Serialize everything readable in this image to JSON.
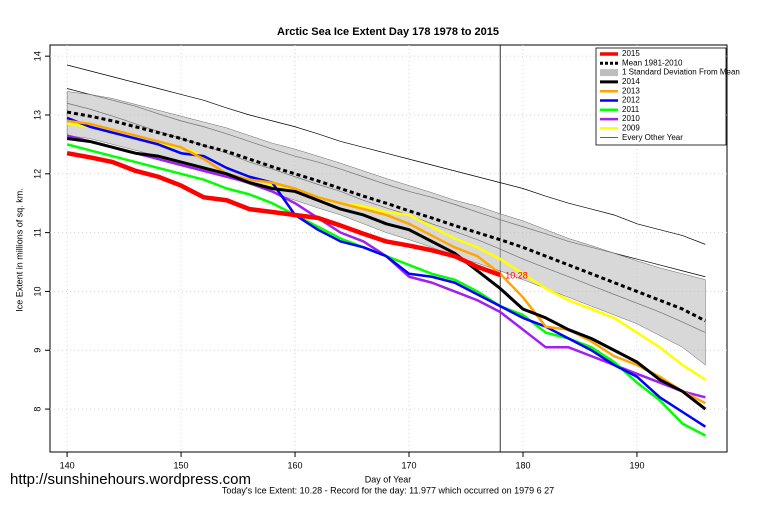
{
  "chart_data": {
    "type": "line",
    "title": "Arctic Sea Ice Extent Day 178 1978 to 2015",
    "x_label": "Day of Year",
    "y_label": "Ice Extent in millions of sq. km.",
    "footer": "Today's Ice Extent: 10.28  - Record for the day: 11.977 which occurred on 1979 6 27",
    "watermark": "http://sunshinehours.wordpress.com",
    "x": [
      140,
      142,
      144,
      146,
      148,
      150,
      152,
      154,
      156,
      158,
      160,
      162,
      164,
      166,
      168,
      170,
      172,
      174,
      176,
      178,
      180,
      182,
      184,
      186,
      188,
      190,
      192,
      194,
      196
    ],
    "xlim": [
      138.5,
      197.9
    ],
    "ylim": [
      7.27,
      14.19
    ],
    "xticks": [
      140,
      150,
      160,
      170,
      180,
      190
    ],
    "yticks": [
      8,
      9,
      10,
      11,
      12,
      13,
      14
    ],
    "grid": true,
    "vline": 178,
    "legend": "top-right",
    "series": [
      {
        "name": "2015",
        "color": "#ff0000",
        "width": 4.5,
        "values": [
          12.35,
          12.28,
          12.2,
          12.05,
          11.95,
          11.8,
          11.6,
          11.55,
          11.4,
          11.35,
          11.3,
          11.25,
          11.12,
          10.98,
          10.85,
          10.78,
          10.7,
          10.6,
          10.42,
          10.28,
          null,
          null,
          null,
          null,
          null,
          null,
          null,
          null,
          null
        ]
      },
      {
        "name": "Mean 1981-2010",
        "color": "#000000",
        "width": 3,
        "dash": true,
        "values": [
          13.05,
          12.98,
          12.9,
          12.8,
          12.7,
          12.6,
          12.48,
          12.38,
          12.25,
          12.12,
          12.0,
          11.88,
          11.75,
          11.62,
          11.5,
          11.37,
          11.25,
          11.12,
          11.0,
          10.88,
          10.75,
          10.6,
          10.45,
          10.3,
          10.15,
          10.0,
          9.85,
          9.7,
          9.5
        ]
      },
      {
        "name": "1 Standard Deviation From Mean",
        "color": "#bebebe",
        "band": true,
        "upper": [
          13.4,
          13.35,
          13.28,
          13.18,
          13.08,
          12.98,
          12.88,
          12.78,
          12.65,
          12.52,
          12.42,
          12.3,
          12.18,
          12.05,
          11.92,
          11.8,
          11.68,
          11.55,
          11.45,
          11.32,
          11.2,
          11.05,
          10.9,
          10.78,
          10.65,
          10.52,
          10.4,
          10.3,
          10.2
        ],
        "lower": [
          12.65,
          12.6,
          12.5,
          12.4,
          12.3,
          12.2,
          12.08,
          11.95,
          11.82,
          11.68,
          11.55,
          11.42,
          11.3,
          11.15,
          11.0,
          10.88,
          10.75,
          10.6,
          10.48,
          10.35,
          10.2,
          10.05,
          9.9,
          9.75,
          9.6,
          9.45,
          9.25,
          9.05,
          8.75
        ]
      },
      {
        "name": "2014",
        "color": "#000000",
        "width": 3,
        "values": [
          12.6,
          12.55,
          12.45,
          12.35,
          12.3,
          12.2,
          12.1,
          12.0,
          11.85,
          11.75,
          11.7,
          11.55,
          11.4,
          11.3,
          11.15,
          11.05,
          10.85,
          10.65,
          10.35,
          10.05,
          9.7,
          9.55,
          9.35,
          9.2,
          9.0,
          8.8,
          8.5,
          8.3,
          8.0
        ]
      },
      {
        "name": "2013",
        "color": "#ffa500",
        "width": 2.5,
        "values": [
          12.9,
          12.85,
          12.75,
          12.65,
          12.55,
          12.45,
          12.25,
          12.0,
          11.9,
          11.85,
          11.75,
          11.6,
          11.5,
          11.4,
          11.3,
          11.15,
          10.95,
          10.75,
          10.6,
          10.3,
          9.9,
          9.4,
          9.35,
          9.15,
          8.9,
          8.75,
          8.55,
          8.3,
          8.1
        ]
      },
      {
        "name": "2012",
        "color": "#0000ff",
        "width": 2.5,
        "values": [
          12.95,
          12.8,
          12.7,
          12.6,
          12.5,
          12.35,
          12.3,
          12.1,
          11.95,
          11.85,
          11.3,
          11.05,
          10.85,
          10.75,
          10.6,
          10.3,
          10.25,
          10.15,
          9.95,
          9.75,
          9.55,
          9.4,
          9.2,
          9.0,
          8.75,
          8.55,
          8.2,
          7.95,
          7.7
        ]
      },
      {
        "name": "2011",
        "color": "#00ff00",
        "width": 2.5,
        "values": [
          12.5,
          12.4,
          12.3,
          12.2,
          12.1,
          12.0,
          11.9,
          11.75,
          11.65,
          11.5,
          11.3,
          11.1,
          10.9,
          10.75,
          10.6,
          10.45,
          10.3,
          10.2,
          10.0,
          9.75,
          9.6,
          9.3,
          9.2,
          9.05,
          8.8,
          8.45,
          8.15,
          7.75,
          7.55
        ]
      },
      {
        "name": "2010",
        "color": "#a020f0",
        "width": 2.5,
        "values": [
          12.65,
          12.55,
          12.45,
          12.35,
          12.25,
          12.15,
          12.05,
          11.95,
          11.85,
          11.7,
          11.5,
          11.25,
          11.0,
          10.85,
          10.6,
          10.25,
          10.15,
          10.0,
          9.85,
          9.65,
          9.35,
          9.05,
          9.05,
          8.9,
          8.75,
          8.6,
          8.45,
          8.3,
          8.2
        ]
      },
      {
        "name": "2009",
        "color": "#ffff00",
        "width": 2.5,
        "values": [
          12.85,
          12.8,
          12.7,
          12.6,
          12.5,
          12.45,
          12.3,
          12.1,
          11.95,
          11.8,
          11.7,
          11.6,
          11.5,
          11.45,
          11.35,
          11.3,
          11.1,
          10.9,
          10.75,
          10.55,
          10.3,
          10.05,
          9.85,
          9.7,
          9.55,
          9.3,
          9.05,
          8.75,
          8.5
        ]
      },
      {
        "name": "Every Other Year",
        "color": "#000000",
        "width": 0.7,
        "lines": [
          [
            13.85,
            13.75,
            13.65,
            13.55,
            13.45,
            13.35,
            13.25,
            13.12,
            13.0,
            12.9,
            12.8,
            12.68,
            12.55,
            12.45,
            12.35,
            12.25,
            12.15,
            12.05,
            11.95,
            11.85,
            11.75,
            11.62,
            11.5,
            11.4,
            11.3,
            11.15,
            11.05,
            10.95,
            10.8
          ],
          [
            13.45,
            13.35,
            13.25,
            13.15,
            13.02,
            12.9,
            12.8,
            12.68,
            12.55,
            12.42,
            12.3,
            12.2,
            12.08,
            11.95,
            11.82,
            11.7,
            11.6,
            11.48,
            11.35,
            11.22,
            11.1,
            10.98,
            10.85,
            10.75,
            10.65,
            10.55,
            10.45,
            10.35,
            10.25
          ],
          [
            13.2,
            13.1,
            12.98,
            12.85,
            12.72,
            12.6,
            12.48,
            12.35,
            12.2,
            12.08,
            11.95,
            11.82,
            11.7,
            11.55,
            11.42,
            11.3,
            11.15,
            11.02,
            10.88,
            10.72,
            10.55,
            10.4,
            10.25,
            10.1,
            9.95,
            9.8,
            9.65,
            9.48,
            9.3
          ]
        ]
      }
    ]
  }
}
